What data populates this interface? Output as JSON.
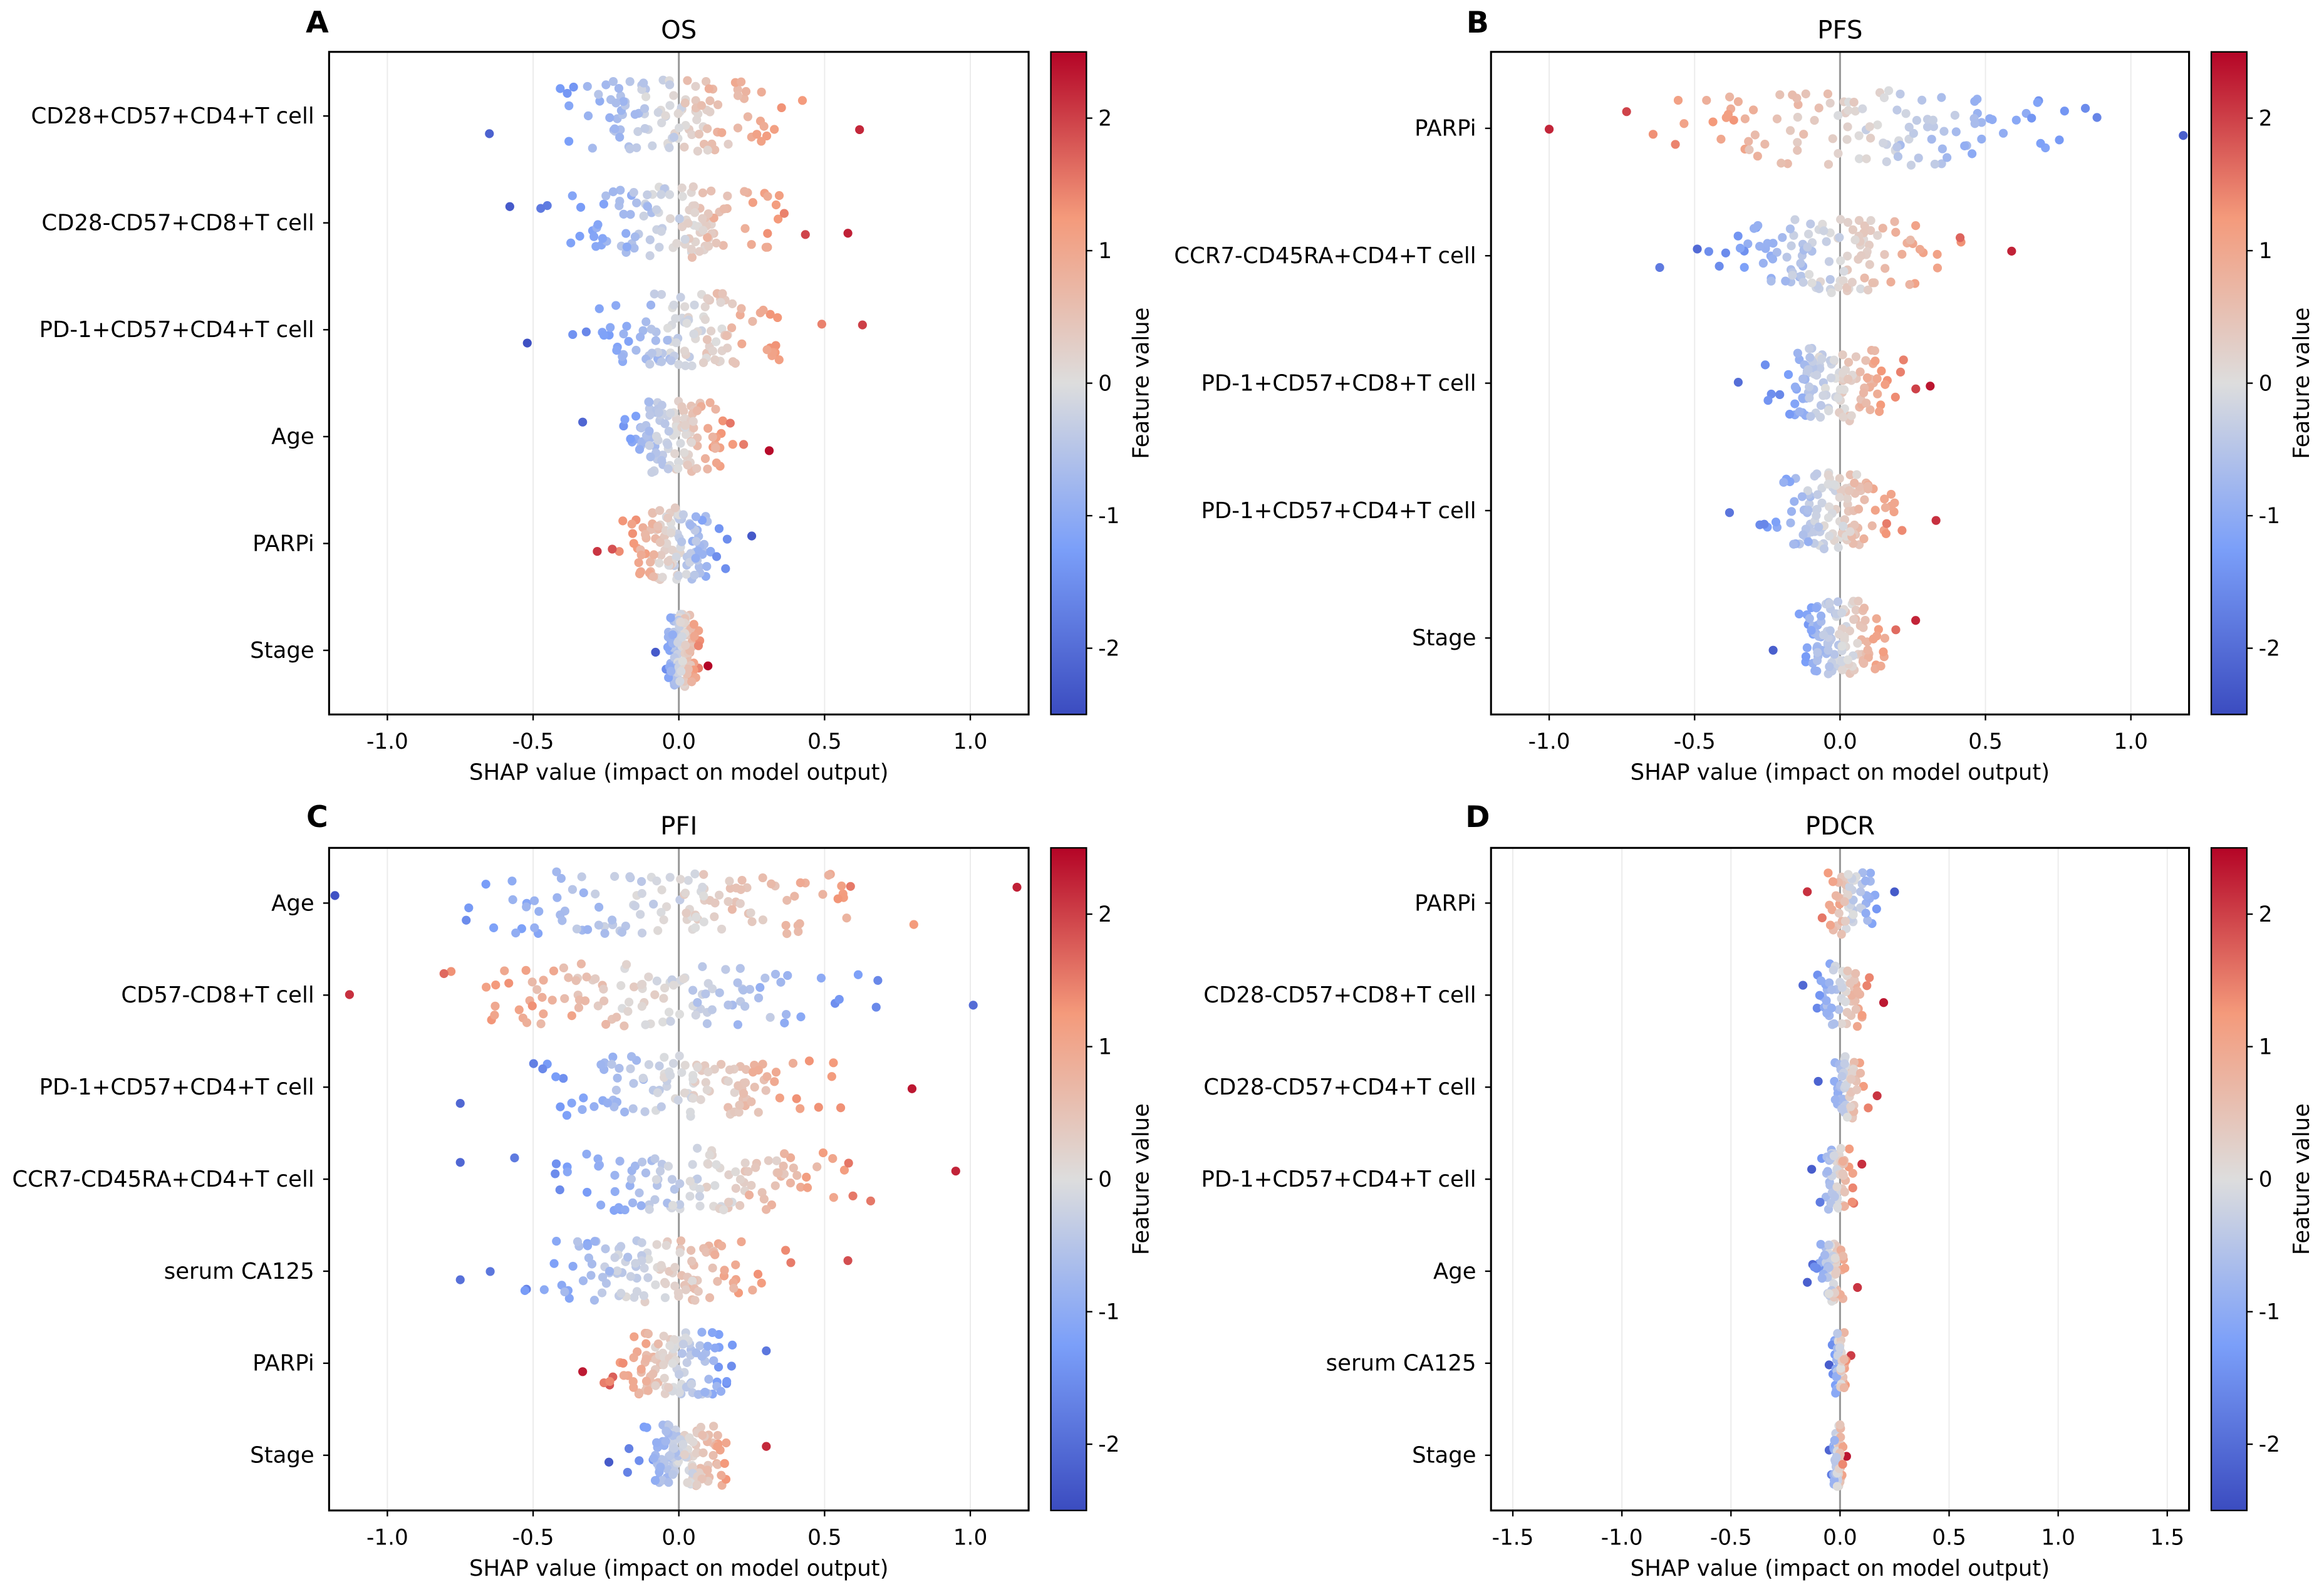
{
  "colorbar": {
    "label": "Feature value",
    "range": [
      -2.5,
      2.5
    ],
    "ticks": [
      "-2",
      "-1",
      "0",
      "1",
      "2"
    ],
    "tick_values": [
      -2,
      -1,
      0,
      1,
      2
    ],
    "colormap": "coolwarm",
    "stops": [
      "#3b4cc0",
      "#7b9ff9",
      "#dddddd",
      "#f49a7b",
      "#b40426"
    ]
  },
  "chart_data": [
    {
      "type": "scatter",
      "letter": "A",
      "title": "OS",
      "xlabel": "SHAP value (impact on model output)",
      "xlim": [
        -1.2,
        1.2
      ],
      "xticks": [
        -1.0,
        -0.5,
        0.0,
        0.5,
        1.0
      ],
      "xtick_labels": [
        "-1.0",
        "-0.5",
        "0.0",
        "0.5",
        "1.0"
      ],
      "grid": true,
      "features": [
        {
          "name": "CD28+CD57+CD4+T cell",
          "shap_min": -0.65,
          "shap_max": 0.62,
          "direction": 1,
          "n": 120
        },
        {
          "name": "CD28-CD57+CD8+T cell",
          "shap_min": -0.58,
          "shap_max": 0.58,
          "direction": 1,
          "n": 120
        },
        {
          "name": "PD-1+CD57+CD4+T cell",
          "shap_min": -0.52,
          "shap_max": 0.63,
          "direction": 1,
          "n": 120
        },
        {
          "name": "Age",
          "shap_min": -0.33,
          "shap_max": 0.31,
          "direction": 1,
          "n": 120
        },
        {
          "name": "PARPi",
          "shap_min": -0.28,
          "shap_max": 0.25,
          "direction": -1,
          "n": 120
        },
        {
          "name": "Stage",
          "shap_min": -0.08,
          "shap_max": 0.1,
          "direction": 1,
          "n": 120
        }
      ]
    },
    {
      "type": "scatter",
      "letter": "B",
      "title": "PFS",
      "xlabel": "SHAP value (impact on model output)",
      "xlim": [
        -1.2,
        1.2
      ],
      "xticks": [
        -1.0,
        -0.5,
        0.0,
        0.5,
        1.0
      ],
      "xtick_labels": [
        "-1.0",
        "-0.5",
        "0.0",
        "0.5",
        "1.0"
      ],
      "grid": true,
      "features": [
        {
          "name": "PARPi",
          "shap_min": -1.0,
          "shap_max": 1.18,
          "direction": -1,
          "n": 120
        },
        {
          "name": "CCR7-CD45RA+CD4+T cell",
          "shap_min": -0.62,
          "shap_max": 0.59,
          "direction": 1,
          "n": 120
        },
        {
          "name": "PD-1+CD57+CD8+T cell",
          "shap_min": -0.35,
          "shap_max": 0.31,
          "direction": 1,
          "n": 120
        },
        {
          "name": "PD-1+CD57+CD4+T cell",
          "shap_min": -0.38,
          "shap_max": 0.33,
          "direction": 1,
          "n": 120
        },
        {
          "name": "Stage",
          "shap_min": -0.23,
          "shap_max": 0.26,
          "direction": 1,
          "n": 120
        }
      ]
    },
    {
      "type": "scatter",
      "letter": "C",
      "title": "PFI",
      "xlabel": "SHAP value (impact on model output)",
      "xlim": [
        -1.2,
        1.2
      ],
      "xticks": [
        -1.0,
        -0.5,
        0.0,
        0.5,
        1.0
      ],
      "xtick_labels": [
        "-1.0",
        "-0.5",
        "0.0",
        "0.5",
        "1.0"
      ],
      "grid": true,
      "features": [
        {
          "name": "Age",
          "shap_min": -1.18,
          "shap_max": 1.16,
          "direction": 1,
          "n": 120
        },
        {
          "name": "CD57-CD8+T cell",
          "shap_min": -1.13,
          "shap_max": 1.01,
          "direction": -1,
          "n": 120
        },
        {
          "name": "PD-1+CD57+CD4+T cell",
          "shap_min": -0.75,
          "shap_max": 0.8,
          "direction": 1,
          "n": 120
        },
        {
          "name": "CCR7-CD45RA+CD4+T cell",
          "shap_min": -0.75,
          "shap_max": 0.95,
          "direction": 1,
          "n": 120
        },
        {
          "name": "serum CA125",
          "shap_min": -0.75,
          "shap_max": 0.58,
          "direction": 1,
          "n": 120
        },
        {
          "name": "PARPi",
          "shap_min": -0.33,
          "shap_max": 0.3,
          "direction": -1,
          "n": 120
        },
        {
          "name": "Stage",
          "shap_min": -0.24,
          "shap_max": 0.3,
          "direction": 1,
          "n": 120
        }
      ]
    },
    {
      "type": "scatter",
      "letter": "D",
      "title": "PDCR",
      "xlabel": "SHAP value (impact on model output)",
      "xlim": [
        -1.6,
        1.6
      ],
      "xticks": [
        -1.5,
        -1.0,
        -0.5,
        0.0,
        0.5,
        1.0,
        1.5
      ],
      "xtick_labels": [
        "-1.5",
        "-1.0",
        "-0.5",
        "0.0",
        "0.5",
        "1.0",
        "1.5"
      ],
      "grid": true,
      "features": [
        {
          "name": "PARPi",
          "shap_min": -0.15,
          "shap_max": 0.25,
          "direction": -1,
          "n": 60
        },
        {
          "name": "CD28-CD57+CD8+T cell",
          "shap_min": -0.17,
          "shap_max": 0.2,
          "direction": 1,
          "n": 60
        },
        {
          "name": "CD28-CD57+CD4+T cell",
          "shap_min": -0.1,
          "shap_max": 0.17,
          "direction": 1,
          "n": 60
        },
        {
          "name": "PD-1+CD57+CD4+T cell",
          "shap_min": -0.13,
          "shap_max": 0.1,
          "direction": 1,
          "n": 60
        },
        {
          "name": "Age",
          "shap_min": -0.15,
          "shap_max": 0.08,
          "direction": 1,
          "n": 60
        },
        {
          "name": "serum CA125",
          "shap_min": -0.05,
          "shap_max": 0.05,
          "direction": 1,
          "n": 60
        },
        {
          "name": "Stage",
          "shap_min": -0.05,
          "shap_max": 0.03,
          "direction": 1,
          "n": 60
        }
      ]
    }
  ]
}
